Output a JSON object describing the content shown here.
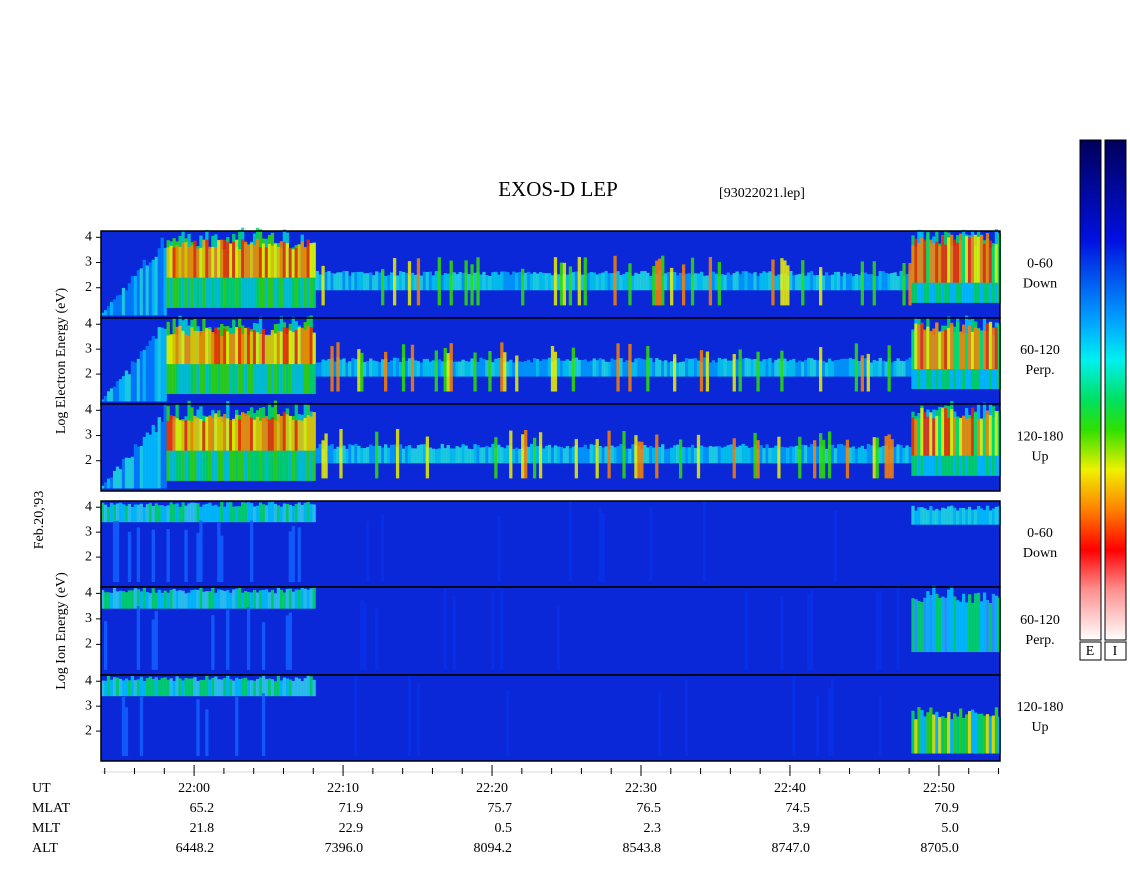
{
  "title": "EXOS-D LEP",
  "file": "[93022021.lep]",
  "chart_data": {
    "type": "spectrogram",
    "xlim": [
      -6.25,
      54.1
    ],
    "xticks": [
      {
        "value": 0,
        "label": "22:00"
      },
      {
        "value": 10,
        "label": "22:10"
      },
      {
        "value": 20,
        "label": "22:20"
      },
      {
        "value": 30,
        "label": "22:30"
      },
      {
        "value": 40,
        "label": "22:40"
      },
      {
        "value": 50,
        "label": "22:50"
      }
    ],
    "xminorticks": [
      -6,
      -4,
      -2,
      2,
      4,
      6,
      8,
      12,
      14,
      16,
      18,
      22,
      24,
      26,
      28,
      32,
      34,
      36,
      38,
      42,
      44,
      46,
      48,
      52,
      54
    ],
    "ylim": [
      0.8,
      4.25
    ],
    "yticks": [
      2,
      3,
      4
    ],
    "date_label": "Feb.20,'93",
    "groups": [
      {
        "kind": "electron",
        "ylabel": "Log Electron Energy (eV)",
        "panels": [
          {
            "angle": "0-60",
            "direction": "Down"
          },
          {
            "angle": "60-120",
            "direction": "Perp."
          },
          {
            "angle": "120-180",
            "direction": "Up"
          }
        ]
      },
      {
        "kind": "ion",
        "ylabel": "Log Ion Energy (eV)",
        "panels": [
          {
            "angle": "0-60",
            "direction": "Down"
          },
          {
            "angle": "60-120",
            "direction": "Perp."
          },
          {
            "angle": "120-180",
            "direction": "Up"
          }
        ]
      }
    ],
    "colorbar_labels": [
      "E",
      "I"
    ],
    "table": [
      {
        "label": "UT"
      },
      {
        "label": "MLAT",
        "values": [
          "65.2",
          "71.9",
          "75.7",
          "76.5",
          "74.5",
          "70.9"
        ]
      },
      {
        "label": "MLT",
        "values": [
          "21.8",
          "22.9",
          "0.5",
          "2.3",
          "3.9",
          "5.0"
        ]
      },
      {
        "label": "ALT",
        "values": [
          "6448.2",
          "7396.0",
          "8094.2",
          "8543.8",
          "8747.0",
          "8705.0"
        ]
      }
    ]
  }
}
